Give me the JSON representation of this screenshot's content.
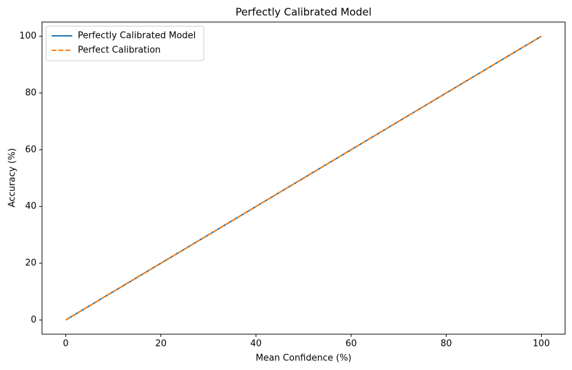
{
  "chart_data": {
    "type": "line",
    "title": "Perfectly Calibrated Model",
    "x_label": "Mean Confidence (%)",
    "y_label": "Accuracy (%)",
    "x": [
      0,
      100
    ],
    "series": [
      {
        "name": "Perfectly Calibrated Model",
        "color": "#1f77b4",
        "linestyle": "solid",
        "values": [
          0,
          100
        ]
      },
      {
        "name": "Perfect Calibration",
        "color": "#ff7f0e",
        "linestyle": "dashed",
        "values": [
          0,
          100
        ]
      }
    ],
    "xlim": [
      -5,
      105
    ],
    "ylim": [
      -5,
      105
    ],
    "xticks": [
      0,
      20,
      40,
      60,
      80,
      100
    ],
    "yticks": [
      0,
      20,
      40,
      60,
      80,
      100
    ],
    "grid": false,
    "legend": "upper left"
  }
}
